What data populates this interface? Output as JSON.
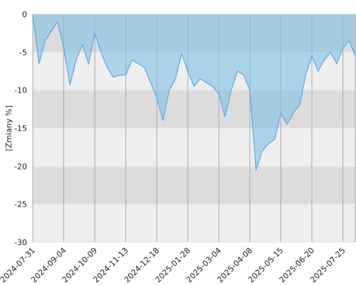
{
  "chart_data": {
    "type": "area",
    "ylabel": "[Zmiany %]",
    "categories": [
      "2024-07-31",
      null,
      null,
      null,
      null,
      "2024-09-04",
      null,
      null,
      null,
      null,
      "2024-10-09",
      null,
      null,
      null,
      null,
      "2024-11-13",
      null,
      null,
      null,
      null,
      "2024-12-18",
      null,
      null,
      null,
      null,
      "2025-01-28",
      null,
      null,
      null,
      null,
      "2025-03-04",
      null,
      null,
      null,
      null,
      "2025-04-08",
      null,
      null,
      null,
      null,
      "2025-05-15",
      null,
      null,
      null,
      null,
      "2025-06-20",
      null,
      null,
      null,
      null,
      "2025-07-25",
      null,
      null
    ],
    "values": [
      0,
      -6.5,
      -3.5,
      -2.2,
      -1,
      -4.5,
      -9.3,
      -6,
      -4,
      -6.5,
      -2.5,
      -5,
      -7,
      -8.3,
      -8,
      -8,
      -6,
      -6.5,
      -7,
      -9,
      -11,
      -14,
      -10,
      -8.5,
      -5.2,
      -7.5,
      -9.5,
      -8.5,
      -9,
      -9.5,
      -10.5,
      -13.5,
      -10,
      -7.5,
      -8,
      -10,
      -20.5,
      -18,
      -17,
      -16.5,
      -13,
      -14.5,
      -13,
      -12,
      -8,
      -5.5,
      -7.5,
      -6,
      -5,
      -6.5,
      -4.5,
      -3.5,
      -5.5
    ],
    "color": "#5ea6e6",
    "ylim": [
      -30,
      0
    ],
    "yticks": [
      0,
      -5,
      -10,
      -15,
      -20,
      -25,
      -30
    ],
    "grid": true
  }
}
